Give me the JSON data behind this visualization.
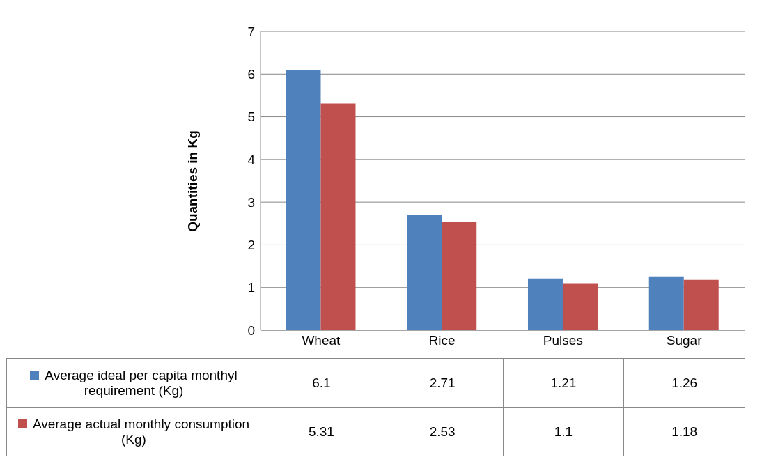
{
  "chart_data": {
    "type": "bar",
    "ylabel": "Quantities in Kg",
    "categories": [
      "Wheat",
      "Rice",
      "Pulses",
      "Sugar"
    ],
    "series": [
      {
        "name": "Average ideal per capita monthyl requirement (Kg)",
        "color": "#4f81bd",
        "values": [
          6.1,
          2.71,
          1.21,
          1.26
        ]
      },
      {
        "name": "Average actual monthly consumption (Kg)",
        "color": "#c0504d",
        "values": [
          5.31,
          2.53,
          1.1,
          1.18
        ]
      }
    ],
    "ylim": [
      0,
      7
    ],
    "yticks": [
      0,
      1,
      2,
      3,
      4,
      5,
      6,
      7
    ],
    "grid": "y",
    "legend": "bottom",
    "data_labels": true
  }
}
